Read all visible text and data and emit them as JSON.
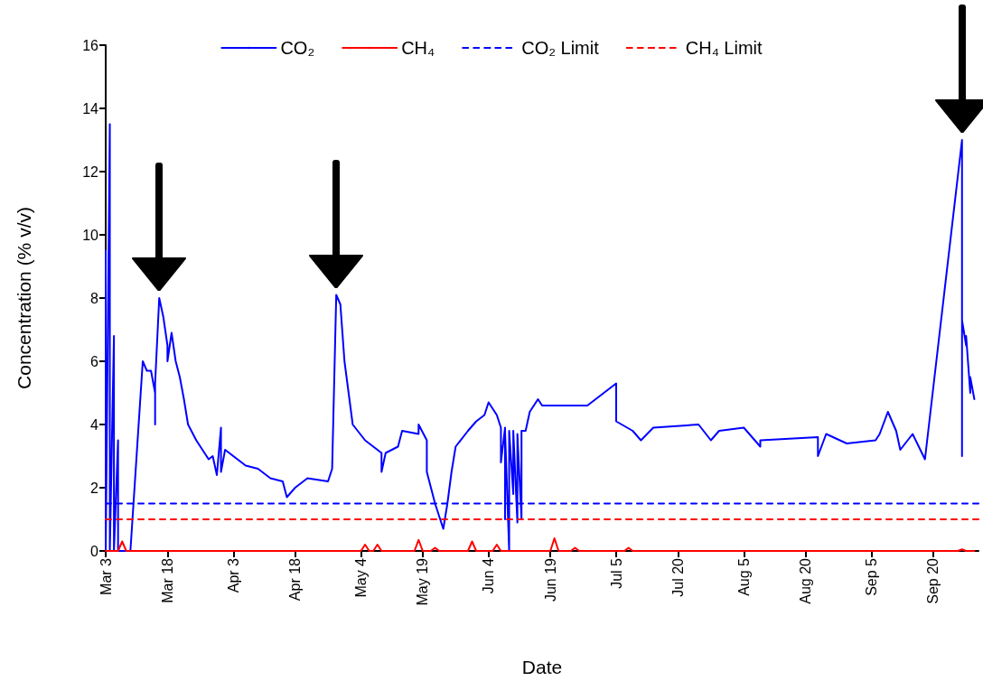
{
  "chart_data": {
    "type": "line",
    "xlabel": "Date",
    "ylabel": "Concentration (% v/v)",
    "xlim": [
      "--03-03",
      "--10-01"
    ],
    "ylim": [
      0,
      16
    ],
    "xticks": [
      {
        "value": "--03-03",
        "label": "Mar 3"
      },
      {
        "value": "--03-18",
        "label": "Mar 18"
      },
      {
        "value": "--04-03",
        "label": "Apr 3"
      },
      {
        "value": "--04-18",
        "label": "Apr 18"
      },
      {
        "value": "--05-04",
        "label": "May 4"
      },
      {
        "value": "--05-19",
        "label": "May 19"
      },
      {
        "value": "--06-04",
        "label": "Jun 4"
      },
      {
        "value": "--06-19",
        "label": "Jun 19"
      },
      {
        "value": "--07-05",
        "label": "Jul 5"
      },
      {
        "value": "--07-20",
        "label": "Jul 20"
      },
      {
        "value": "--08-05",
        "label": "Aug 5"
      },
      {
        "value": "--08-20",
        "label": "Aug 20"
      },
      {
        "value": "--09-05",
        "label": "Sep 5"
      },
      {
        "value": "--09-20",
        "label": "Sep 20"
      }
    ],
    "yticks": [
      0,
      2,
      4,
      6,
      8,
      10,
      12,
      14,
      16
    ],
    "grid": false,
    "legend": "top",
    "marker": "none",
    "series": [
      {
        "name": "CO₂",
        "color": "#0000ff",
        "line_style": "solid",
        "x": [
          "--03-03",
          "--03-03",
          "--03-04",
          "--03-04",
          "--03-05",
          "--03-05",
          "--03-06",
          "--03-06",
          "--03-09",
          "--03-12",
          "--03-13",
          "--03-14",
          "--03-15",
          "--03-15",
          "--03-15",
          "--03-16",
          "--03-17",
          "--03-18",
          "--03-18",
          "--03-19",
          "--03-20",
          "--03-21",
          "--03-22",
          "--03-23",
          "--03-25",
          "--03-26",
          "--03-28",
          "--03-29",
          "--03-30",
          "--03-31",
          "--03-31",
          "--04-01",
          "--04-06",
          "--04-09",
          "--04-12",
          "--04-15",
          "--04-16",
          "--04-18",
          "--04-21",
          "--04-26",
          "--04-27",
          "--04-28",
          "--04-29",
          "--04-30",
          "--05-01",
          "--05-02",
          "--05-05",
          "--05-09",
          "--05-09",
          "--05-10",
          "--05-13",
          "--05-14",
          "--05-18",
          "--05-18",
          "--05-20",
          "--05-20",
          "--05-22",
          "--05-24",
          "--05-25",
          "--05-26",
          "--05-27",
          "--05-30",
          "--06-01",
          "--06-03",
          "--06-04",
          "--06-06",
          "--06-07",
          "--06-07",
          "--06-08",
          "--06-08",
          "--06-08",
          "--06-09",
          "--06-09",
          "--06-10",
          "--06-10",
          "--06-11",
          "--06-11",
          "--06-12",
          "--06-12",
          "--06-13",
          "--06-14",
          "--06-16",
          "--06-17",
          "--06-22",
          "--06-27",
          "--06-28",
          "--07-05",
          "--07-05",
          "--07-09",
          "--07-11",
          "--07-14",
          "--07-25",
          "--07-28",
          "--07-30",
          "--08-05",
          "--08-09",
          "--08-09",
          "--08-23",
          "--08-23",
          "--08-25",
          "--08-30",
          "--09-06",
          "--09-07",
          "--09-09",
          "--09-11",
          "--09-12",
          "--09-15",
          "--09-18",
          "--09-27",
          "--09-27",
          "--09-27",
          "--09-28",
          "--09-28",
          "--09-29",
          "--09-29",
          "--09-30"
        ],
        "values": [
          9.5,
          0,
          13.5,
          0,
          6.8,
          0,
          3.5,
          0,
          0,
          6.0,
          5.7,
          5.7,
          5.0,
          4.0,
          5.3,
          8.0,
          7.4,
          6.5,
          6.0,
          6.9,
          6.0,
          5.5,
          4.8,
          4.0,
          3.5,
          3.3,
          2.9,
          3.0,
          2.4,
          3.9,
          2.5,
          3.2,
          2.7,
          2.6,
          2.3,
          2.2,
          1.7,
          2.0,
          2.3,
          2.2,
          2.6,
          8.1,
          7.8,
          6.0,
          5.0,
          4.0,
          3.5,
          3.1,
          2.5,
          3.1,
          3.3,
          3.8,
          3.7,
          4.0,
          3.5,
          2.5,
          1.5,
          0.7,
          1.5,
          2.5,
          3.3,
          3.8,
          4.1,
          4.3,
          4.7,
          4.3,
          3.9,
          2.8,
          3.9,
          1.0,
          3.8,
          0,
          3.8,
          1.8,
          3.8,
          0.9,
          3.7,
          1.0,
          3.8,
          3.8,
          4.4,
          4.8,
          4.6,
          4.6,
          4.6,
          4.6,
          5.3,
          4.1,
          3.8,
          3.5,
          3.9,
          4.0,
          3.5,
          3.8,
          3.9,
          3.3,
          3.5,
          3.6,
          3.0,
          3.7,
          3.4,
          3.5,
          3.7,
          4.4,
          3.8,
          3.2,
          3.7,
          2.9,
          13.0,
          3.0,
          7.3,
          6.5,
          6.8,
          5.0,
          5.5,
          4.8
        ]
      },
      {
        "name": "CH₄",
        "color": "#ff0000",
        "line_style": "solid",
        "x": [
          "--03-03",
          "--03-06",
          "--03-07",
          "--03-08",
          "--05-04",
          "--05-05",
          "--05-06",
          "--05-07",
          "--05-08",
          "--05-09",
          "--05-17",
          "--05-18",
          "--05-19",
          "--05-21",
          "--05-22",
          "--05-23",
          "--05-30",
          "--05-31",
          "--06-01",
          "--06-05",
          "--06-06",
          "--06-07",
          "--06-19",
          "--06-20",
          "--06-21",
          "--06-24",
          "--06-25",
          "--06-26",
          "--07-07",
          "--07-08",
          "--07-09",
          "--09-26",
          "--09-27",
          "--09-28",
          "--09-30"
        ],
        "values": [
          0,
          0,
          0.3,
          0,
          0,
          0.2,
          0,
          0,
          0.2,
          0,
          0,
          0.35,
          0,
          0,
          0.1,
          0,
          0,
          0.3,
          0,
          0,
          0.2,
          0,
          0,
          0.4,
          0,
          0,
          0.1,
          0,
          0,
          0.1,
          0,
          0,
          0.05,
          0,
          0
        ]
      },
      {
        "name": "CO₂ Limit",
        "color": "#0000ff",
        "line_style": "dashed",
        "x": [
          "--03-03",
          "--10-01"
        ],
        "values": [
          1.5,
          1.5
        ]
      },
      {
        "name": "CH₄ Limit",
        "color": "#ff0000",
        "line_style": "dashed",
        "x": [
          "--03-03",
          "--10-01"
        ],
        "values": [
          1.0,
          1.0
        ]
      }
    ]
  }
}
